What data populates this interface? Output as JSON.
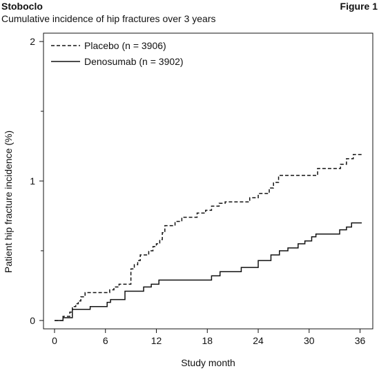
{
  "header": {
    "title": "Stoboclo",
    "subtitle": "Cumulative incidence of hip fractures over 3 years",
    "figure_label": "Figure 1"
  },
  "chart_data": {
    "type": "line",
    "step": true,
    "xlabel": "Study month",
    "ylabel": "Patient hip fracture incidence (%)",
    "xlim": [
      -1.3,
      37.5
    ],
    "ylim": [
      -0.06,
      2.06
    ],
    "xticks": [
      0,
      6,
      12,
      18,
      24,
      30,
      36
    ],
    "yticks": [
      0,
      1,
      2
    ],
    "yminor": [
      0.5,
      1.5
    ],
    "grid": false,
    "legend_position": "top-left",
    "series": [
      {
        "name": "Placebo (n = 3906)",
        "style": "dashed",
        "color": "#111111",
        "points": [
          [
            0,
            0
          ],
          [
            1.0,
            0.03
          ],
          [
            1.8,
            0.06
          ],
          [
            2.1,
            0.1
          ],
          [
            2.5,
            0.12
          ],
          [
            2.8,
            0.14
          ],
          [
            3.1,
            0.17
          ],
          [
            3.6,
            0.2
          ],
          [
            6.5,
            0.22
          ],
          [
            7.0,
            0.24
          ],
          [
            7.6,
            0.26
          ],
          [
            9.0,
            0.37
          ],
          [
            9.4,
            0.4
          ],
          [
            9.8,
            0.43
          ],
          [
            10.1,
            0.47
          ],
          [
            11.1,
            0.5
          ],
          [
            11.6,
            0.53
          ],
          [
            12.0,
            0.55
          ],
          [
            12.4,
            0.58
          ],
          [
            12.7,
            0.63
          ],
          [
            13.0,
            0.68
          ],
          [
            14.2,
            0.71
          ],
          [
            15.0,
            0.74
          ],
          [
            16.8,
            0.77
          ],
          [
            17.8,
            0.79
          ],
          [
            18.5,
            0.82
          ],
          [
            19.4,
            0.84
          ],
          [
            20.1,
            0.85
          ],
          [
            23.0,
            0.88
          ],
          [
            24.0,
            0.91
          ],
          [
            25.3,
            0.95
          ],
          [
            25.8,
            0.99
          ],
          [
            26.4,
            1.04
          ],
          [
            31.0,
            1.09
          ],
          [
            33.7,
            1.12
          ],
          [
            34.4,
            1.16
          ],
          [
            35.2,
            1.19
          ],
          [
            36.2,
            1.19
          ]
        ]
      },
      {
        "name": "Denosumab (n = 3902)",
        "style": "solid",
        "color": "#111111",
        "points": [
          [
            0,
            0
          ],
          [
            1.0,
            0.02
          ],
          [
            2.1,
            0.08
          ],
          [
            4.2,
            0.1
          ],
          [
            6.2,
            0.13
          ],
          [
            6.6,
            0.15
          ],
          [
            8.3,
            0.21
          ],
          [
            10.5,
            0.24
          ],
          [
            11.4,
            0.26
          ],
          [
            12.3,
            0.29
          ],
          [
            18.5,
            0.32
          ],
          [
            19.5,
            0.35
          ],
          [
            22.0,
            0.38
          ],
          [
            24.0,
            0.43
          ],
          [
            25.5,
            0.47
          ],
          [
            26.5,
            0.5
          ],
          [
            27.5,
            0.52
          ],
          [
            28.7,
            0.55
          ],
          [
            29.5,
            0.57
          ],
          [
            30.3,
            0.6
          ],
          [
            30.8,
            0.62
          ],
          [
            33.6,
            0.65
          ],
          [
            34.4,
            0.67
          ],
          [
            35.0,
            0.7
          ],
          [
            36.2,
            0.7
          ]
        ]
      }
    ]
  }
}
